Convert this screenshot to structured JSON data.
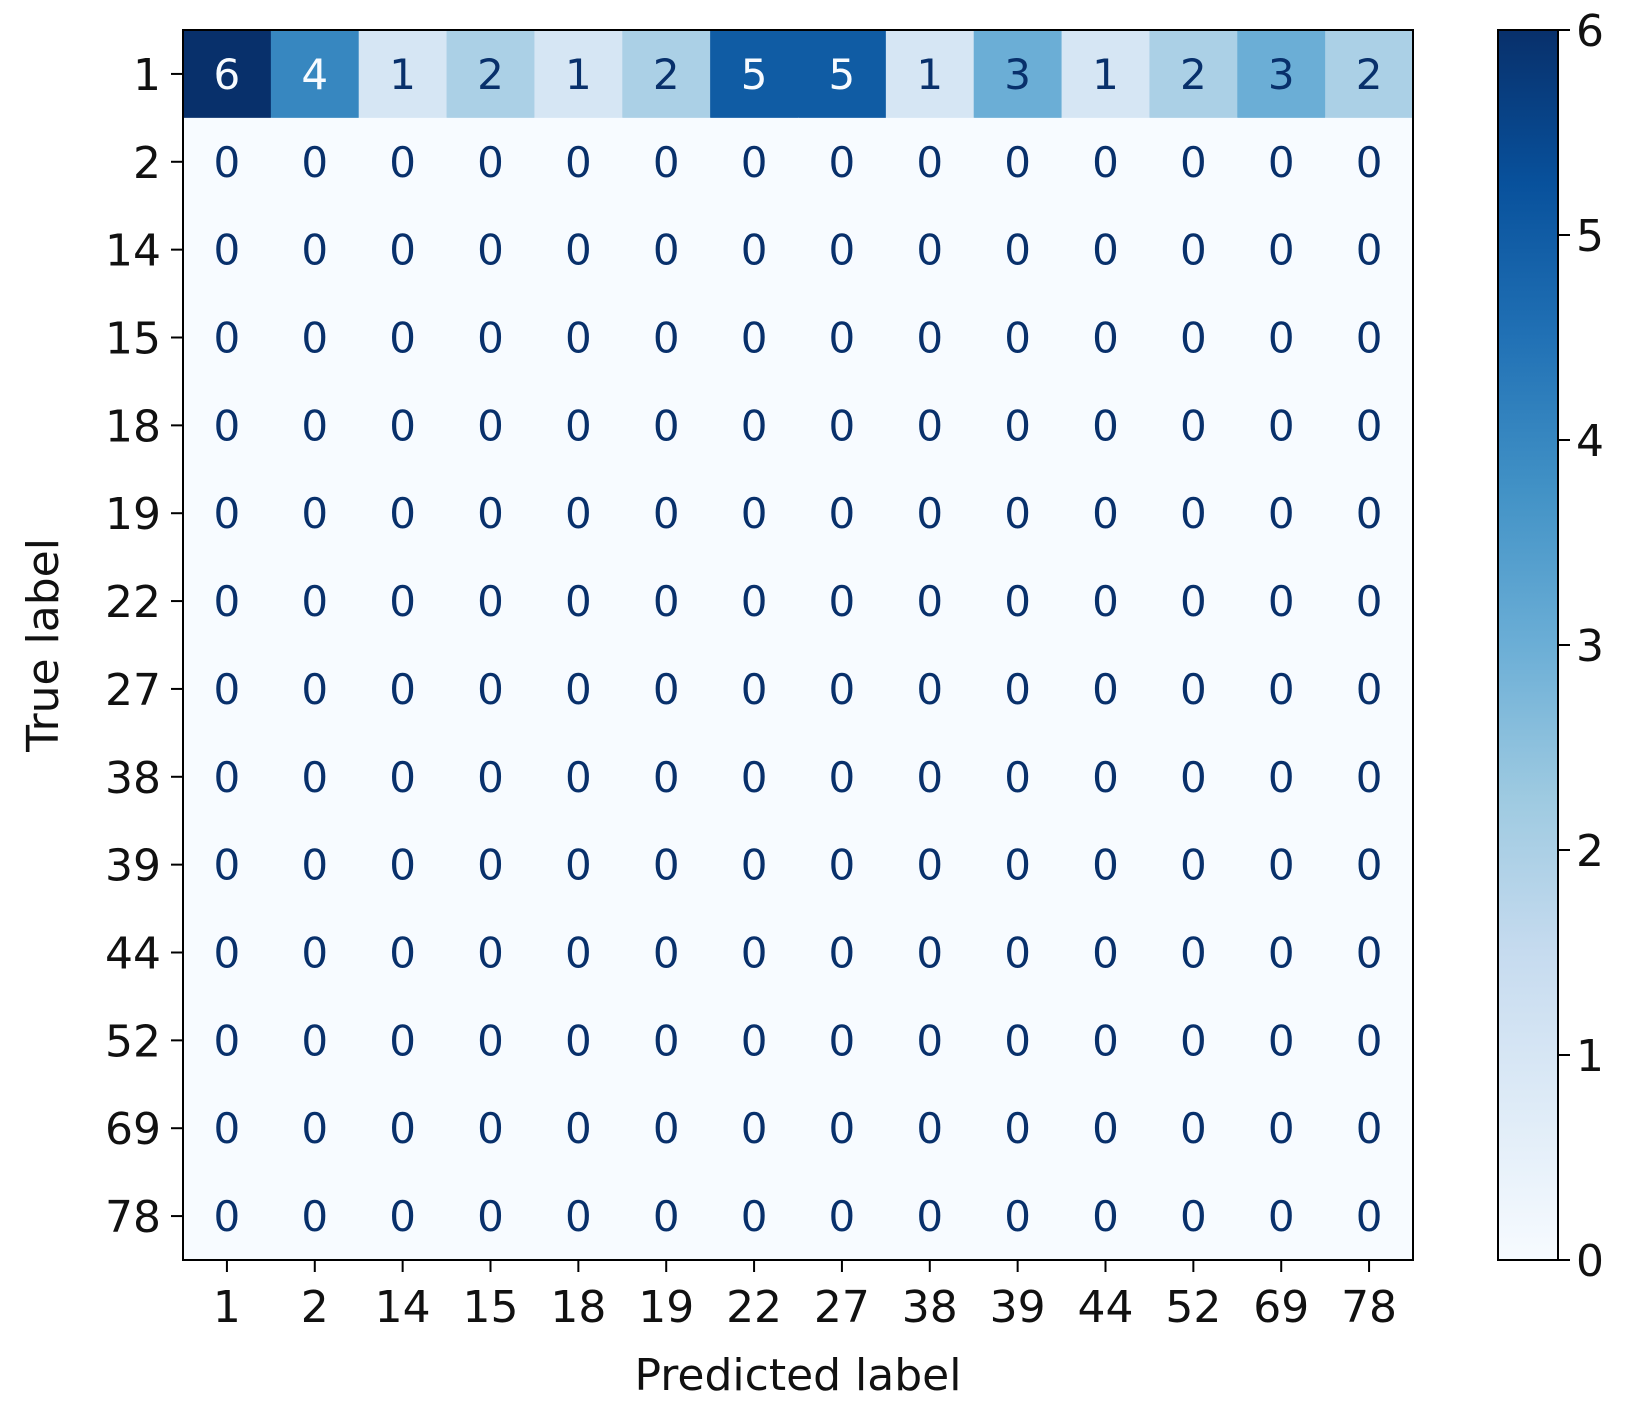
{
  "chart_data": {
    "type": "heatmap",
    "title": "",
    "xlabel": "Predicted label",
    "ylabel": "True label",
    "x_categories": [
      "1",
      "2",
      "14",
      "15",
      "18",
      "19",
      "22",
      "27",
      "38",
      "39",
      "44",
      "52",
      "69",
      "78"
    ],
    "y_categories": [
      "1",
      "2",
      "14",
      "15",
      "18",
      "19",
      "22",
      "27",
      "38",
      "39",
      "44",
      "52",
      "69",
      "78"
    ],
    "values": [
      [
        6,
        4,
        1,
        2,
        1,
        2,
        5,
        5,
        1,
        3,
        1,
        2,
        3,
        2
      ],
      [
        0,
        0,
        0,
        0,
        0,
        0,
        0,
        0,
        0,
        0,
        0,
        0,
        0,
        0
      ],
      [
        0,
        0,
        0,
        0,
        0,
        0,
        0,
        0,
        0,
        0,
        0,
        0,
        0,
        0
      ],
      [
        0,
        0,
        0,
        0,
        0,
        0,
        0,
        0,
        0,
        0,
        0,
        0,
        0,
        0
      ],
      [
        0,
        0,
        0,
        0,
        0,
        0,
        0,
        0,
        0,
        0,
        0,
        0,
        0,
        0
      ],
      [
        0,
        0,
        0,
        0,
        0,
        0,
        0,
        0,
        0,
        0,
        0,
        0,
        0,
        0
      ],
      [
        0,
        0,
        0,
        0,
        0,
        0,
        0,
        0,
        0,
        0,
        0,
        0,
        0,
        0
      ],
      [
        0,
        0,
        0,
        0,
        0,
        0,
        0,
        0,
        0,
        0,
        0,
        0,
        0,
        0
      ],
      [
        0,
        0,
        0,
        0,
        0,
        0,
        0,
        0,
        0,
        0,
        0,
        0,
        0,
        0
      ],
      [
        0,
        0,
        0,
        0,
        0,
        0,
        0,
        0,
        0,
        0,
        0,
        0,
        0,
        0
      ],
      [
        0,
        0,
        0,
        0,
        0,
        0,
        0,
        0,
        0,
        0,
        0,
        0,
        0,
        0
      ],
      [
        0,
        0,
        0,
        0,
        0,
        0,
        0,
        0,
        0,
        0,
        0,
        0,
        0,
        0
      ],
      [
        0,
        0,
        0,
        0,
        0,
        0,
        0,
        0,
        0,
        0,
        0,
        0,
        0,
        0
      ],
      [
        0,
        0,
        0,
        0,
        0,
        0,
        0,
        0,
        0,
        0,
        0,
        0,
        0,
        0
      ]
    ],
    "colormap": "Blues",
    "colormap_stops": [
      "#f7fbff",
      "#deebf7",
      "#c6dbef",
      "#9ecae1",
      "#6baed6",
      "#4292c6",
      "#2171b5",
      "#08519c",
      "#08306b"
    ],
    "colorbar": {
      "range": [
        0,
        6
      ],
      "ticks": [
        "0",
        "1",
        "2",
        "3",
        "4",
        "5",
        "6"
      ]
    },
    "text_color_dark": "#08306b",
    "text_color_light": "#f7fbff",
    "grid": false
  }
}
